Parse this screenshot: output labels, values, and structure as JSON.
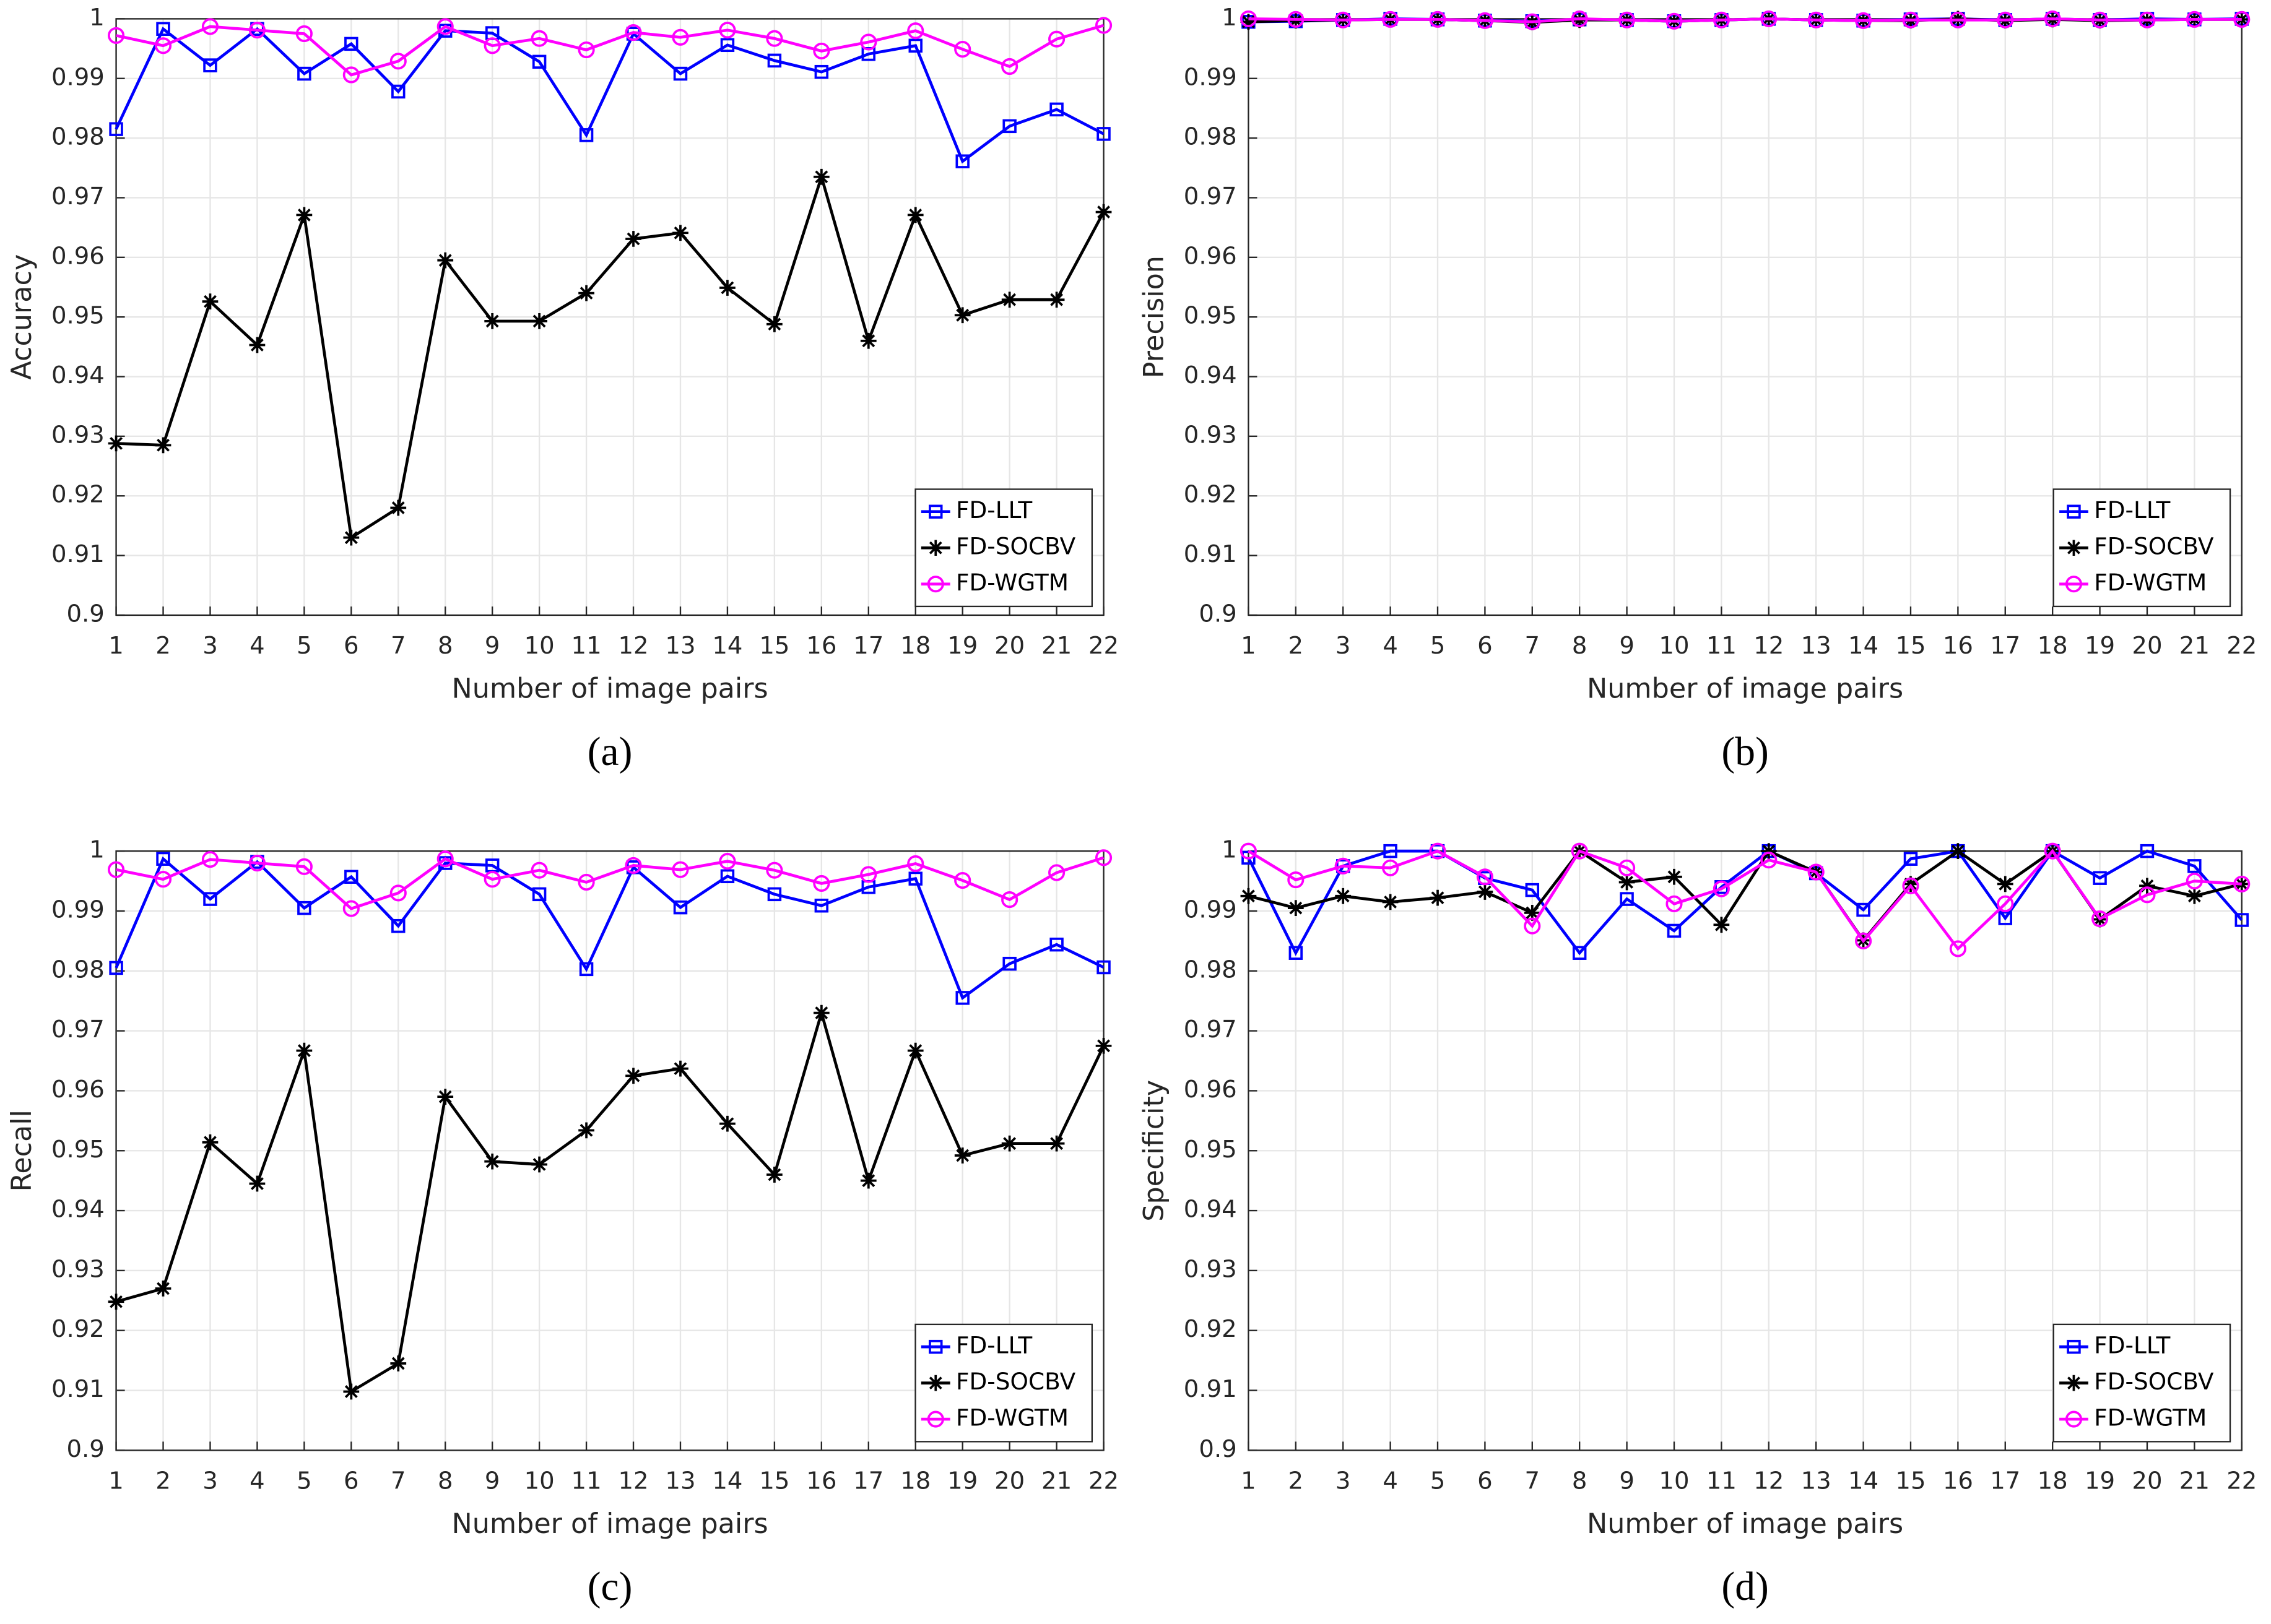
{
  "chart_data": [
    {
      "type": "line",
      "caption": "(a)",
      "xlabel": "Number of image pairs",
      "ylabel": "Accuracy",
      "x": [
        1,
        2,
        3,
        4,
        5,
        6,
        7,
        8,
        9,
        10,
        11,
        12,
        13,
        14,
        15,
        16,
        17,
        18,
        19,
        20,
        21,
        22
      ],
      "xlim": [
        1,
        22
      ],
      "xticks": [
        1,
        2,
        3,
        4,
        5,
        6,
        7,
        8,
        9,
        10,
        11,
        12,
        13,
        14,
        15,
        16,
        17,
        18,
        19,
        20,
        21,
        22
      ],
      "ylim": [
        0.9,
        1
      ],
      "yticks": [
        0.9,
        0.91,
        0.92,
        0.93,
        0.94,
        0.95,
        0.96,
        0.97,
        0.98,
        0.99,
        1
      ],
      "grid": true,
      "legend": "lower right",
      "series": [
        {
          "name": "FD-LLT",
          "color": "#0000ff",
          "marker": "square",
          "values": [
            0.9815,
            0.9983,
            0.9922,
            0.9983,
            0.9908,
            0.9958,
            0.9878,
            0.998,
            0.9976,
            0.9928,
            0.9805,
            0.9975,
            0.9908,
            0.9956,
            0.993,
            0.9911,
            0.9941,
            0.9955,
            0.9761,
            0.982,
            0.9848,
            0.9807
          ]
        },
        {
          "name": "FD-SOCBV",
          "color": "#000000",
          "marker": "asterisk",
          "values": [
            0.9288,
            0.9285,
            0.9526,
            0.9453,
            0.9671,
            0.913,
            0.918,
            0.9595,
            0.9493,
            0.9493,
            0.954,
            0.9631,
            0.9641,
            0.9549,
            0.9488,
            0.9735,
            0.946,
            0.9671,
            0.9503,
            0.9529,
            0.9529,
            0.9676
          ]
        },
        {
          "name": "FD-WGTM",
          "color": "#ff00ff",
          "marker": "circle",
          "values": [
            0.9972,
            0.9955,
            0.9987,
            0.9981,
            0.9975,
            0.9906,
            0.9929,
            0.9987,
            0.9955,
            0.9967,
            0.9948,
            0.9977,
            0.9969,
            0.9981,
            0.9967,
            0.9946,
            0.9961,
            0.998,
            0.9949,
            0.992,
            0.9966,
            0.9989
          ]
        }
      ]
    },
    {
      "type": "line",
      "caption": "(b)",
      "xlabel": "Number of image pairs",
      "ylabel": "Precision",
      "x": [
        1,
        2,
        3,
        4,
        5,
        6,
        7,
        8,
        9,
        10,
        11,
        12,
        13,
        14,
        15,
        16,
        17,
        18,
        19,
        20,
        21,
        22
      ],
      "xlim": [
        1,
        22
      ],
      "xticks": [
        1,
        2,
        3,
        4,
        5,
        6,
        7,
        8,
        9,
        10,
        11,
        12,
        13,
        14,
        15,
        16,
        17,
        18,
        19,
        20,
        21,
        22
      ],
      "ylim": [
        0.9,
        1
      ],
      "yticks": [
        0.9,
        0.91,
        0.92,
        0.93,
        0.94,
        0.95,
        0.96,
        0.97,
        0.98,
        0.99,
        1
      ],
      "grid": true,
      "legend": "lower right",
      "series": [
        {
          "name": "FD-LLT",
          "color": "#0000ff",
          "marker": "square",
          "values": [
            0.9995,
            0.9996,
            0.9998,
            1,
            0.9999,
            0.9997,
            0.9996,
            0.9999,
            0.9998,
            0.9996,
            0.9998,
            1,
            0.9998,
            0.9997,
            0.9999,
            1,
            0.9998,
            1,
            0.9998,
            1,
            0.9999,
            1
          ]
        },
        {
          "name": "FD-SOCBV",
          "color": "#000000",
          "marker": "asterisk",
          "values": [
            0.9995,
            0.9997,
            0.9998,
            0.9999,
            0.9999,
            0.9997,
            0.9994,
            0.9998,
            0.9998,
            0.9996,
            0.9998,
            1,
            0.9998,
            0.9997,
            0.9997,
            1,
            0.9997,
            0.9999,
            0.9997,
            0.9998,
            0.9999,
            0.9999
          ]
        },
        {
          "name": "FD-WGTM",
          "color": "#ff00ff",
          "marker": "circle",
          "values": [
            1,
            0.9999,
            0.9998,
            0.9999,
            0.9999,
            0.9997,
            0.9995,
            1,
            0.9998,
            0.9996,
            0.9998,
            1,
            0.9998,
            0.9997,
            0.9998,
            0.9998,
            0.9998,
            1,
            0.9998,
            0.9998,
            0.9999,
            0.9999
          ]
        }
      ]
    },
    {
      "type": "line",
      "caption": "(c)",
      "xlabel": "Number of image pairs",
      "ylabel": "Recall",
      "x": [
        1,
        2,
        3,
        4,
        5,
        6,
        7,
        8,
        9,
        10,
        11,
        12,
        13,
        14,
        15,
        16,
        17,
        18,
        19,
        20,
        21,
        22
      ],
      "xlim": [
        1,
        22
      ],
      "xticks": [
        1,
        2,
        3,
        4,
        5,
        6,
        7,
        8,
        9,
        10,
        11,
        12,
        13,
        14,
        15,
        16,
        17,
        18,
        19,
        20,
        21,
        22
      ],
      "ylim": [
        0.9,
        1
      ],
      "yticks": [
        0.9,
        0.91,
        0.92,
        0.93,
        0.94,
        0.95,
        0.96,
        0.97,
        0.98,
        0.99,
        1
      ],
      "grid": true,
      "legend": "lower right",
      "series": [
        {
          "name": "FD-LLT",
          "color": "#0000ff",
          "marker": "square",
          "values": [
            0.9805,
            0.9987,
            0.992,
            0.9982,
            0.9905,
            0.9957,
            0.9875,
            0.998,
            0.9976,
            0.9928,
            0.9803,
            0.9973,
            0.9906,
            0.9958,
            0.9928,
            0.9909,
            0.994,
            0.9954,
            0.9755,
            0.9812,
            0.9844,
            0.9806
          ]
        },
        {
          "name": "FD-SOCBV",
          "color": "#000000",
          "marker": "asterisk",
          "values": [
            0.9248,
            0.927,
            0.9514,
            0.9445,
            0.9667,
            0.9098,
            0.9145,
            0.959,
            0.9482,
            0.9477,
            0.9534,
            0.9625,
            0.9637,
            0.9545,
            0.946,
            0.973,
            0.945,
            0.9667,
            0.9492,
            0.9512,
            0.9512,
            0.9675
          ]
        },
        {
          "name": "FD-WGTM",
          "color": "#ff00ff",
          "marker": "circle",
          "values": [
            0.9969,
            0.9953,
            0.9986,
            0.998,
            0.9974,
            0.9904,
            0.993,
            0.9987,
            0.9953,
            0.9968,
            0.9948,
            0.9976,
            0.9969,
            0.9983,
            0.9968,
            0.9946,
            0.9961,
            0.9979,
            0.9951,
            0.9919,
            0.9964,
            0.9989
          ]
        }
      ]
    },
    {
      "type": "line",
      "caption": "(d)",
      "xlabel": "Number of image pairs",
      "ylabel": "Specificity",
      "x": [
        1,
        2,
        3,
        4,
        5,
        6,
        7,
        8,
        9,
        10,
        11,
        12,
        13,
        14,
        15,
        16,
        17,
        18,
        19,
        20,
        21,
        22
      ],
      "xlim": [
        1,
        22
      ],
      "xticks": [
        1,
        2,
        3,
        4,
        5,
        6,
        7,
        8,
        9,
        10,
        11,
        12,
        13,
        14,
        15,
        16,
        17,
        18,
        19,
        20,
        21,
        22
      ],
      "ylim": [
        0.9,
        1
      ],
      "yticks": [
        0.9,
        0.91,
        0.92,
        0.93,
        0.94,
        0.95,
        0.96,
        0.97,
        0.98,
        0.99,
        1
      ],
      "grid": true,
      "legend": "lower right",
      "series": [
        {
          "name": "FD-LLT",
          "color": "#0000ff",
          "marker": "square",
          "values": [
            0.9989,
            0.983,
            0.9975,
            1,
            1,
            0.9955,
            0.9935,
            0.983,
            0.992,
            0.9867,
            0.994,
            1,
            0.9963,
            0.9902,
            0.9987,
            1,
            0.9888,
            1,
            0.9955,
            1,
            0.9975,
            0.9885
          ]
        },
        {
          "name": "FD-SOCBV",
          "color": "#000000",
          "marker": "asterisk",
          "values": [
            0.9925,
            0.9905,
            0.9925,
            0.9915,
            0.9922,
            0.9932,
            0.9897,
            1,
            0.9948,
            0.9957,
            0.9877,
            1,
            0.9965,
            0.9851,
            0.9945,
            1,
            0.9945,
            1,
            0.9886,
            0.9942,
            0.9925,
            0.9945
          ]
        },
        {
          "name": "FD-WGTM",
          "color": "#ff00ff",
          "marker": "circle",
          "values": [
            1,
            0.9952,
            0.9975,
            0.9972,
            1,
            0.9957,
            0.9875,
            1,
            0.9972,
            0.9912,
            0.9937,
            0.9985,
            0.9965,
            0.985,
            0.9942,
            0.9837,
            0.9912,
            1,
            0.9887,
            0.9927,
            0.995,
            0.9945
          ]
        }
      ]
    }
  ]
}
